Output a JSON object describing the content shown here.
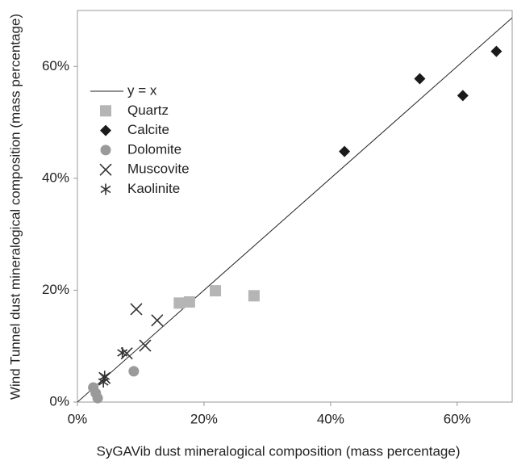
{
  "chart_data": {
    "type": "scatter",
    "xlabel": "SyGAVib dust mineralogical composition (mass percentage)",
    "ylabel": "Wind Tunnel dust mineralogical composition (mass percentage)",
    "xlim": [
      0,
      68.7
    ],
    "ylim": [
      0,
      70
    ],
    "xticks": [
      {
        "value": 0,
        "label": "0%"
      },
      {
        "value": 20,
        "label": "20%"
      },
      {
        "value": 40,
        "label": "40%"
      },
      {
        "value": 60,
        "label": "60%"
      }
    ],
    "yticks": [
      {
        "value": 0,
        "label": "0%"
      },
      {
        "value": 20,
        "label": "20%"
      },
      {
        "value": 40,
        "label": "40%"
      },
      {
        "value": 60,
        "label": "60%"
      }
    ],
    "series": [
      {
        "name": "y = x",
        "marker": "line",
        "color": "#222222",
        "x": [
          0,
          68.7
        ],
        "values": [
          0,
          68.7
        ]
      },
      {
        "name": "Quartz",
        "marker": "square",
        "color": "#b5b5b5",
        "x": [
          16.1,
          17.7,
          21.8,
          27.9
        ],
        "values": [
          17.7,
          17.9,
          19.9,
          19.0
        ]
      },
      {
        "name": "Calcite",
        "marker": "diamond",
        "color": "#1a1a1a",
        "x": [
          42.2,
          54.1,
          60.9,
          66.2
        ],
        "values": [
          44.8,
          57.8,
          54.8,
          62.7
        ]
      },
      {
        "name": "Dolomite",
        "marker": "circle",
        "color": "#9a9a9a",
        "x": [
          2.5,
          2.9,
          3.2,
          8.9
        ],
        "values": [
          2.6,
          1.6,
          0.7,
          5.5
        ]
      },
      {
        "name": "Muscovite",
        "marker": "x",
        "color": "#333333",
        "x": [
          9.3,
          12.6,
          10.7,
          7.8,
          4.3
        ],
        "values": [
          16.6,
          14.6,
          10.1,
          8.7,
          4.3
        ]
      },
      {
        "name": "Kaolinite",
        "marker": "asterisk",
        "color": "#333333",
        "x": [
          7.1,
          4.3,
          4.1
        ],
        "values": [
          8.8,
          4.6,
          3.6
        ]
      }
    ]
  }
}
